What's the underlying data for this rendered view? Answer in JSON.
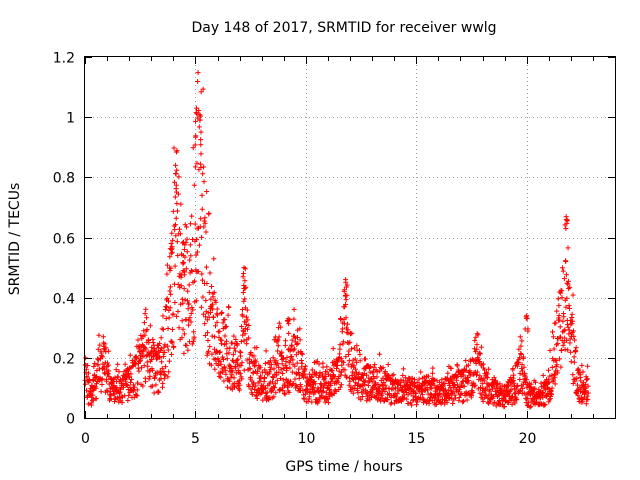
{
  "chart_data": {
    "type": "scatter",
    "title": "Day 148 of 2017, SRMTID for receiver wwlg",
    "xlabel": "GPS time / hours",
    "ylabel": "SRMTID / TECUs",
    "xlim": [
      0,
      24
    ],
    "ylim": [
      0,
      1.2
    ],
    "x_ticks": [
      0,
      5,
      10,
      15,
      20
    ],
    "x_tick_labels": [
      "0",
      "5",
      "10",
      "15",
      "20"
    ],
    "y_ticks": [
      0,
      0.2,
      0.4,
      0.6,
      0.8,
      1.0,
      1.2
    ],
    "y_tick_labels": [
      "0",
      "0.2",
      "0.4",
      "0.6",
      "0.8",
      "1",
      "1.2"
    ],
    "grid": true,
    "marker": "+",
    "color": "#ff0000",
    "series": [
      {
        "name": "SRMTID",
        "profile": [
          [
            0.0,
            0.14
          ],
          [
            0.25,
            0.07
          ],
          [
            0.5,
            0.12
          ],
          [
            0.75,
            0.2
          ],
          [
            1.0,
            0.16
          ],
          [
            1.25,
            0.09
          ],
          [
            1.5,
            0.11
          ],
          [
            2.0,
            0.12
          ],
          [
            2.25,
            0.15
          ],
          [
            2.5,
            0.18
          ],
          [
            2.75,
            0.26
          ],
          [
            3.0,
            0.2
          ],
          [
            3.25,
            0.17
          ],
          [
            3.5,
            0.22
          ],
          [
            3.75,
            0.3
          ],
          [
            4.0,
            0.5
          ],
          [
            4.2,
            0.72
          ],
          [
            4.4,
            0.45
          ],
          [
            4.6,
            0.48
          ],
          [
            4.8,
            0.45
          ],
          [
            5.0,
            0.65
          ],
          [
            5.1,
            0.92
          ],
          [
            5.25,
            0.8
          ],
          [
            5.5,
            0.45
          ],
          [
            5.75,
            0.32
          ],
          [
            6.0,
            0.27
          ],
          [
            6.25,
            0.24
          ],
          [
            6.5,
            0.22
          ],
          [
            6.75,
            0.18
          ],
          [
            7.0,
            0.2
          ],
          [
            7.25,
            0.35
          ],
          [
            7.5,
            0.16
          ],
          [
            8.0,
            0.12
          ],
          [
            8.5,
            0.14
          ],
          [
            8.75,
            0.22
          ],
          [
            9.0,
            0.14
          ],
          [
            9.5,
            0.22
          ],
          [
            10.0,
            0.12
          ],
          [
            10.5,
            0.11
          ],
          [
            11.0,
            0.11
          ],
          [
            11.5,
            0.16
          ],
          [
            11.75,
            0.32
          ],
          [
            12.0,
            0.2
          ],
          [
            12.5,
            0.12
          ],
          [
            13.0,
            0.13
          ],
          [
            13.5,
            0.12
          ],
          [
            14.0,
            0.09
          ],
          [
            14.5,
            0.1
          ],
          [
            15.0,
            0.09
          ],
          [
            15.5,
            0.1
          ],
          [
            16.0,
            0.09
          ],
          [
            16.5,
            0.1
          ],
          [
            17.0,
            0.11
          ],
          [
            17.5,
            0.14
          ],
          [
            17.75,
            0.22
          ],
          [
            18.0,
            0.12
          ],
          [
            18.5,
            0.09
          ],
          [
            19.0,
            0.08
          ],
          [
            19.5,
            0.11
          ],
          [
            19.75,
            0.2
          ],
          [
            20.0,
            0.08
          ],
          [
            20.5,
            0.07
          ],
          [
            21.0,
            0.1
          ],
          [
            21.25,
            0.22
          ],
          [
            21.5,
            0.33
          ],
          [
            21.75,
            0.4
          ],
          [
            22.0,
            0.3
          ],
          [
            22.25,
            0.14
          ],
          [
            22.5,
            0.1
          ],
          [
            22.8,
            0.1
          ]
        ],
        "peaks": [
          [
            4.1,
            0.84
          ],
          [
            5.05,
            1.03
          ],
          [
            5.2,
            0.99
          ],
          [
            11.8,
            0.46
          ],
          [
            21.8,
            0.66
          ],
          [
            7.2,
            0.5
          ],
          [
            9.2,
            0.33
          ],
          [
            20.0,
            0.34
          ],
          [
            3.9,
            0.58
          ],
          [
            4.5,
            0.56
          ]
        ],
        "x_start": 0.0,
        "x_end": 22.8,
        "sample_step_hours": 0.01
      }
    ]
  }
}
